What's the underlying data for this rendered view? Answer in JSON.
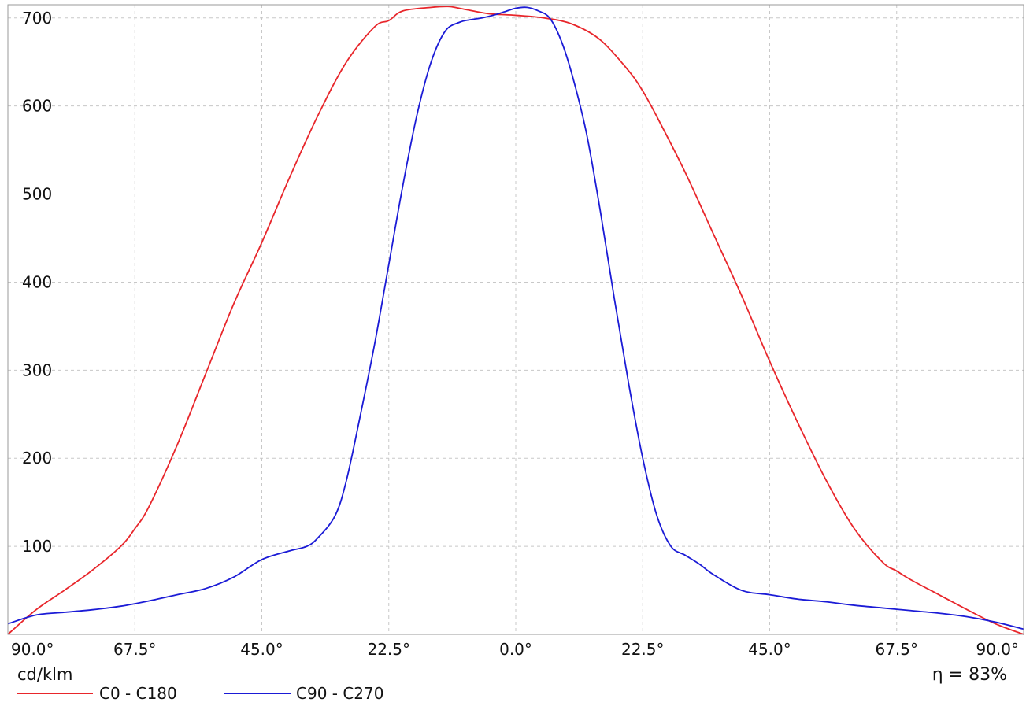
{
  "chart_data": {
    "type": "line",
    "title": "",
    "xlabel": "",
    "ylabel": "cd/klm",
    "annotation": "η = 83%",
    "x_tick_labels": [
      "90.0°",
      "67.5°",
      "45.0°",
      "22.5°",
      "0.0°",
      "22.5°",
      "45.0°",
      "67.5°",
      "90.0°"
    ],
    "x_tick_values": [
      -90,
      -67.5,
      -45,
      -22.5,
      0,
      22.5,
      45,
      67.5,
      90
    ],
    "xlim": [
      -90,
      90
    ],
    "y_ticks": [
      100,
      200,
      300,
      400,
      500,
      600,
      700
    ],
    "ylim": [
      0,
      715
    ],
    "grid": true,
    "legend_position": "bottom-left",
    "series": [
      {
        "name": "C0 - C180",
        "color": "#e8262b",
        "x": [
          -90,
          -85,
          -80,
          -75,
          -70,
          -67.5,
          -65,
          -60,
          -55,
          -50,
          -45,
          -40,
          -35,
          -30,
          -25,
          -22.5,
          -20,
          -15,
          -12,
          -10,
          -5,
          0,
          5,
          10,
          15,
          20,
          22.5,
          25,
          30,
          35,
          40,
          45,
          50,
          55,
          60,
          65,
          67.5,
          70,
          75,
          80,
          85,
          90
        ],
        "y": [
          0,
          28,
          50,
          73,
          100,
          120,
          145,
          215,
          295,
          375,
          445,
          520,
          590,
          650,
          690,
          697,
          708,
          712,
          713,
          711,
          705,
          703,
          700,
          693,
          675,
          640,
          617,
          588,
          525,
          455,
          385,
          310,
          240,
          175,
          120,
          82,
          72,
          62,
          45,
          28,
          12,
          0
        ]
      },
      {
        "name": "C90 - C270",
        "color": "#1b1bd6",
        "x": [
          -90,
          -85,
          -80,
          -75,
          -70,
          -65,
          -60,
          -55,
          -50,
          -45,
          -40,
          -37,
          -35,
          -32,
          -30,
          -27.5,
          -25,
          -22.5,
          -20,
          -17.5,
          -15,
          -12.5,
          -10,
          -8,
          -6,
          -4,
          -2,
          0,
          2,
          4,
          6,
          8,
          10,
          12.5,
          15,
          17.5,
          20,
          22.5,
          25,
          27.5,
          30,
          32.5,
          35,
          40,
          45,
          50,
          55,
          60,
          65,
          70,
          75,
          80,
          85,
          90
        ],
        "y": [
          12,
          22,
          25,
          28,
          32,
          38,
          45,
          52,
          65,
          85,
          95,
          100,
          110,
          135,
          175,
          250,
          330,
          420,
          510,
          590,
          650,
          685,
          695,
          698,
          700,
          703,
          707,
          711,
          712,
          708,
          700,
          675,
          635,
          570,
          480,
          380,
          285,
          200,
          135,
          100,
          90,
          80,
          68,
          50,
          45,
          40,
          37,
          33,
          30,
          27,
          24,
          20,
          14,
          6
        ]
      }
    ]
  }
}
